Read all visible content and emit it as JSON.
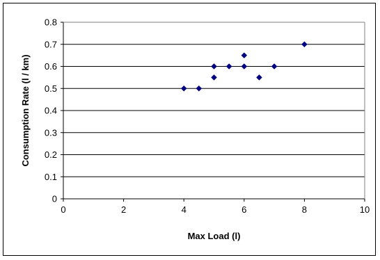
{
  "chart_data": {
    "type": "scatter",
    "title": "",
    "xlabel": "Max Load (l)",
    "ylabel": "Consumption Rate (l / km)",
    "xlim": [
      0,
      10
    ],
    "ylim": [
      0,
      0.8
    ],
    "x_ticks": [
      "0",
      "2",
      "4",
      "6",
      "8",
      "10"
    ],
    "y_ticks": [
      "0",
      "0.1",
      "0.2",
      "0.3",
      "0.4",
      "0.5",
      "0.6",
      "0.7",
      "0.8"
    ],
    "grid": "horizontal",
    "legend": "none",
    "marker": "diamond",
    "marker_color": "#000080",
    "series": [
      {
        "points": [
          {
            "x": 4,
            "y": 0.5
          },
          {
            "x": 4.5,
            "y": 0.5
          },
          {
            "x": 5,
            "y": 0.55
          },
          {
            "x": 5,
            "y": 0.6
          },
          {
            "x": 5.5,
            "y": 0.6
          },
          {
            "x": 6,
            "y": 0.6
          },
          {
            "x": 6,
            "y": 0.65
          },
          {
            "x": 6.5,
            "y": 0.55
          },
          {
            "x": 7,
            "y": 0.6
          },
          {
            "x": 8,
            "y": 0.7
          }
        ]
      }
    ]
  }
}
